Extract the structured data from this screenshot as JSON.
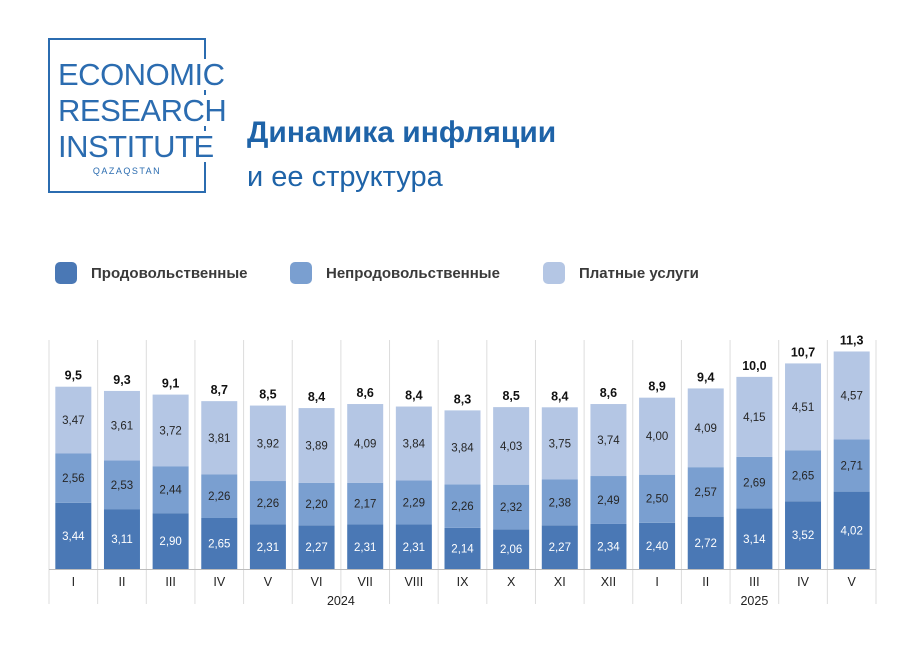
{
  "logo": {
    "line1": "ECONOMIC",
    "line2": "RESEARCH",
    "line3": "INSTITUTE",
    "sub": "QAZAQSTAN"
  },
  "header": {
    "title": "Динамика инфляции",
    "subtitle": "и ее структура"
  },
  "colors": {
    "food": "#4a78b5",
    "nonfood": "#7a9fd0",
    "services": "#b4c6e4",
    "divider": "#dcdcdc"
  },
  "chart_data": {
    "type": "bar",
    "stacked": true,
    "categories": [
      "I",
      "II",
      "III",
      "IV",
      "V",
      "VI",
      "VII",
      "VIII",
      "IX",
      "X",
      "XI",
      "XII",
      "I",
      "II",
      "III",
      "IV",
      "V"
    ],
    "year_groups": [
      {
        "label": "2024",
        "count": 12
      },
      {
        "label": "2025",
        "count": 5
      }
    ],
    "series": [
      {
        "name": "Продовольственные",
        "values": [
          3.44,
          3.11,
          2.9,
          2.65,
          2.31,
          2.27,
          2.31,
          2.31,
          2.14,
          2.06,
          2.27,
          2.34,
          2.4,
          2.72,
          3.14,
          3.52,
          4.02
        ],
        "labels": [
          "3,44",
          "3,11",
          "2,90",
          "2,65",
          "2,31",
          "2,27",
          "2,31",
          "2,31",
          "2,14",
          "2,06",
          "2,27",
          "2,34",
          "2,40",
          "2,72",
          "3,14",
          "3,52",
          "4,02"
        ]
      },
      {
        "name": "Непродовольственные",
        "values": [
          2.56,
          2.53,
          2.44,
          2.26,
          2.26,
          2.2,
          2.17,
          2.29,
          2.26,
          2.32,
          2.38,
          2.49,
          2.5,
          2.57,
          2.69,
          2.65,
          2.71
        ],
        "labels": [
          "2,56",
          "2,53",
          "2,44",
          "2,26",
          "2,26",
          "2,20",
          "2,17",
          "2,29",
          "2,26",
          "2,32",
          "2,38",
          "2,49",
          "2,50",
          "2,57",
          "2,69",
          "2,65",
          "2,71"
        ]
      },
      {
        "name": "Платные услуги",
        "values": [
          3.47,
          3.61,
          3.72,
          3.81,
          3.92,
          3.89,
          4.09,
          3.84,
          3.84,
          4.03,
          3.75,
          3.74,
          4.0,
          4.09,
          4.15,
          4.51,
          4.57
        ],
        "labels": [
          "3,47",
          "3,61",
          "3,72",
          "3,81",
          "3,92",
          "3,89",
          "4,09",
          "3,84",
          "3,84",
          "4,03",
          "3,75",
          "3,74",
          "4,00",
          "4,09",
          "4,15",
          "4,51",
          "4,57"
        ]
      }
    ],
    "totals": [
      9.5,
      9.3,
      9.1,
      8.7,
      8.5,
      8.4,
      8.6,
      8.4,
      8.3,
      8.5,
      8.4,
      8.6,
      8.9,
      9.4,
      10.0,
      10.7,
      11.3
    ],
    "total_labels": [
      "9,5",
      "9,3",
      "9,1",
      "8,7",
      "8,5",
      "8,4",
      "8,6",
      "8,4",
      "8,3",
      "8,5",
      "8,4",
      "8,6",
      "8,9",
      "9,4",
      "10,0",
      "10,7",
      "11,3"
    ],
    "legend_position": "top-left",
    "grid": false
  }
}
